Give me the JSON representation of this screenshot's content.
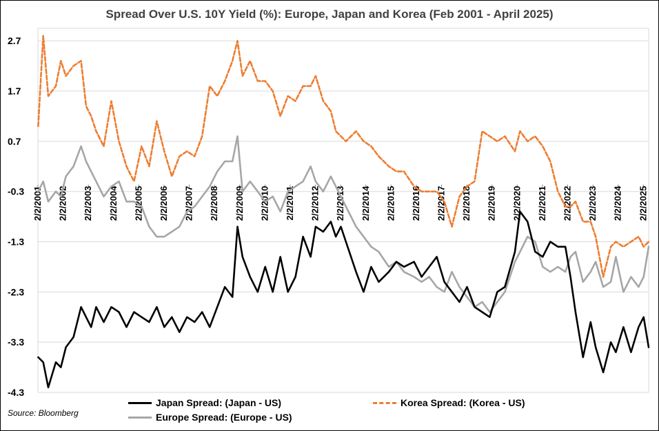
{
  "chart_data": {
    "type": "line",
    "title": "Spread Over U.S. 10Y Yield (%): Europe, Japan and Korea (Feb 2001 - April 2025)",
    "xlabel": "",
    "ylabel": "",
    "ylim": [
      -4.3,
      2.95
    ],
    "yticks": [
      2.7,
      1.7,
      0.7,
      -0.3,
      -1.3,
      -2.3,
      -3.3,
      -4.3
    ],
    "xlim": [
      2001.09,
      2025.3
    ],
    "xticks": [
      "2/2/2001",
      "2/2/2002",
      "2/2/2003",
      "2/2/2004",
      "2/2/2005",
      "2/2/2006",
      "2/2/2007",
      "2/2/2008",
      "2/2/2009",
      "2/2/2010",
      "2/2/2011",
      "2/2/2012",
      "2/2/2013",
      "2/2/2014",
      "2/2/2015",
      "2/2/2016",
      "2/2/2017",
      "2/2/2018",
      "2/2/2019",
      "2/2/2020",
      "2/2/2021",
      "2/2/2022",
      "2/2/2023",
      "2/2/2024",
      "2/2/2025"
    ],
    "xtick_positions": [
      2001.09,
      2002.09,
      2003.09,
      2004.09,
      2005.09,
      2006.09,
      2007.09,
      2008.09,
      2009.09,
      2010.09,
      2011.09,
      2012.09,
      2013.09,
      2014.09,
      2015.09,
      2016.09,
      2017.09,
      2018.09,
      2019.09,
      2020.09,
      2021.09,
      2022.09,
      2023.09,
      2024.09,
      2025.09
    ],
    "grid": true,
    "legend_position": "bottom",
    "series": [
      {
        "name": "Japan Spread: (Japan - US)",
        "color": "#000000",
        "style": "solid",
        "x": [
          2001.1,
          2001.3,
          2001.5,
          2001.8,
          2002.0,
          2002.2,
          2002.5,
          2002.8,
          2003.0,
          2003.2,
          2003.4,
          2003.7,
          2004.0,
          2004.3,
          2004.6,
          2004.9,
          2005.2,
          2005.5,
          2005.8,
          2006.1,
          2006.4,
          2006.7,
          2007.0,
          2007.3,
          2007.6,
          2007.9,
          2008.2,
          2008.5,
          2008.8,
          2009.0,
          2009.2,
          2009.5,
          2009.8,
          2010.1,
          2010.4,
          2010.7,
          2011.0,
          2011.3,
          2011.6,
          2011.9,
          2012.1,
          2012.4,
          2012.7,
          2012.9,
          2013.1,
          2013.3,
          2013.5,
          2013.7,
          2014.0,
          2014.3,
          2014.6,
          2015.0,
          2015.3,
          2015.6,
          2016.0,
          2016.3,
          2016.6,
          2016.9,
          2017.2,
          2017.5,
          2017.8,
          2018.1,
          2018.4,
          2018.7,
          2019.0,
          2019.3,
          2019.6,
          2020.0,
          2020.2,
          2020.5,
          2020.8,
          2021.1,
          2021.4,
          2021.7,
          2022.0,
          2022.2,
          2022.4,
          2022.7,
          2023.0,
          2023.2,
          2023.5,
          2023.8,
          2024.0,
          2024.3,
          2024.6,
          2024.9,
          2025.1,
          2025.3
        ],
        "values": [
          -3.6,
          -3.7,
          -4.2,
          -3.7,
          -3.8,
          -3.4,
          -3.2,
          -2.6,
          -2.8,
          -3.0,
          -2.6,
          -2.9,
          -2.6,
          -2.7,
          -3.0,
          -2.7,
          -2.8,
          -2.9,
          -2.6,
          -3.0,
          -2.8,
          -3.1,
          -2.8,
          -2.9,
          -2.7,
          -3.0,
          -2.6,
          -2.2,
          -2.4,
          -1.0,
          -1.6,
          -2.0,
          -2.3,
          -1.8,
          -2.3,
          -1.6,
          -2.3,
          -2.0,
          -1.2,
          -1.6,
          -1.0,
          -1.1,
          -0.9,
          -1.2,
          -1.0,
          -1.3,
          -1.6,
          -1.9,
          -2.3,
          -1.8,
          -2.1,
          -1.9,
          -1.7,
          -1.8,
          -1.7,
          -2.0,
          -1.8,
          -1.6,
          -2.1,
          -2.3,
          -2.5,
          -2.2,
          -2.6,
          -2.7,
          -2.8,
          -2.3,
          -2.2,
          -1.5,
          -0.7,
          -0.9,
          -1.5,
          -1.6,
          -1.3,
          -1.4,
          -1.4,
          -2.0,
          -2.7,
          -3.6,
          -2.9,
          -3.4,
          -3.9,
          -3.3,
          -3.5,
          -3.0,
          -3.5,
          -3.0,
          -2.8,
          -3.4
        ]
      },
      {
        "name": "Korea Spread: (Korea - US)",
        "color": "#ED7D31",
        "style": "dashed",
        "x": [
          2001.1,
          2001.3,
          2001.5,
          2001.8,
          2002.0,
          2002.2,
          2002.5,
          2002.8,
          2003.0,
          2003.2,
          2003.4,
          2003.7,
          2004.0,
          2004.3,
          2004.6,
          2004.9,
          2005.2,
          2005.5,
          2005.8,
          2006.1,
          2006.4,
          2006.7,
          2007.0,
          2007.3,
          2007.6,
          2007.9,
          2008.2,
          2008.5,
          2008.8,
          2009.0,
          2009.2,
          2009.5,
          2009.8,
          2010.1,
          2010.4,
          2010.7,
          2011.0,
          2011.3,
          2011.6,
          2011.9,
          2012.1,
          2012.4,
          2012.7,
          2012.9,
          2013.1,
          2013.3,
          2013.5,
          2013.7,
          2014.0,
          2014.3,
          2014.6,
          2015.0,
          2015.3,
          2015.6,
          2016.0,
          2016.3,
          2016.6,
          2016.9,
          2017.2,
          2017.5,
          2017.8,
          2018.1,
          2018.4,
          2018.7,
          2019.0,
          2019.3,
          2019.6,
          2020.0,
          2020.2,
          2020.5,
          2020.8,
          2021.1,
          2021.4,
          2021.7,
          2022.0,
          2022.2,
          2022.4,
          2022.7,
          2023.0,
          2023.2,
          2023.5,
          2023.8,
          2024.0,
          2024.3,
          2024.6,
          2024.9,
          2025.1,
          2025.3
        ],
        "values": [
          1.0,
          2.8,
          1.6,
          1.8,
          2.3,
          2.0,
          2.2,
          2.3,
          1.4,
          1.2,
          0.9,
          0.6,
          1.5,
          0.7,
          0.2,
          -0.1,
          0.6,
          0.2,
          1.1,
          0.5,
          0.0,
          0.4,
          0.5,
          0.4,
          0.8,
          1.8,
          1.6,
          1.9,
          2.3,
          2.7,
          2.0,
          2.3,
          1.9,
          1.9,
          1.7,
          1.2,
          1.6,
          1.5,
          1.8,
          1.8,
          2.0,
          1.5,
          1.3,
          0.9,
          0.8,
          0.7,
          0.8,
          0.9,
          0.7,
          0.6,
          0.4,
          0.2,
          0.1,
          0.1,
          -0.2,
          -0.3,
          -0.3,
          -0.3,
          -0.5,
          -1.0,
          -0.4,
          -0.2,
          -0.1,
          0.9,
          0.8,
          0.7,
          0.8,
          0.5,
          0.9,
          0.7,
          0.8,
          0.6,
          0.3,
          -0.3,
          -0.6,
          -0.6,
          -0.5,
          -0.9,
          -0.9,
          -1.2,
          -2.0,
          -1.4,
          -1.3,
          -1.4,
          -1.3,
          -1.2,
          -1.4,
          -1.3
        ]
      },
      {
        "name": "Europe Spread: (Europe - US)",
        "color": "#A6A6A6",
        "style": "solid",
        "x": [
          2001.1,
          2001.3,
          2001.5,
          2001.8,
          2002.0,
          2002.2,
          2002.5,
          2002.8,
          2003.0,
          2003.2,
          2003.4,
          2003.7,
          2004.0,
          2004.3,
          2004.6,
          2004.9,
          2005.2,
          2005.5,
          2005.8,
          2006.1,
          2006.4,
          2006.7,
          2007.0,
          2007.3,
          2007.6,
          2007.9,
          2008.2,
          2008.5,
          2008.8,
          2009.0,
          2009.2,
          2009.5,
          2009.8,
          2010.1,
          2010.4,
          2010.7,
          2011.0,
          2011.3,
          2011.6,
          2011.9,
          2012.1,
          2012.4,
          2012.7,
          2012.9,
          2013.1,
          2013.3,
          2013.5,
          2013.7,
          2014.0,
          2014.3,
          2014.6,
          2015.0,
          2015.3,
          2015.6,
          2016.0,
          2016.3,
          2016.6,
          2016.9,
          2017.2,
          2017.5,
          2017.8,
          2018.1,
          2018.4,
          2018.7,
          2019.0,
          2019.3,
          2019.6,
          2020.0,
          2020.2,
          2020.5,
          2020.8,
          2021.1,
          2021.4,
          2021.7,
          2022.0,
          2022.2,
          2022.4,
          2022.7,
          2023.0,
          2023.2,
          2023.5,
          2023.8,
          2024.0,
          2024.3,
          2024.6,
          2024.9,
          2025.1,
          2025.3
        ],
        "values": [
          -0.3,
          -0.1,
          -0.5,
          -0.3,
          -0.4,
          0.0,
          0.2,
          0.6,
          0.3,
          0.1,
          -0.1,
          -0.4,
          -0.2,
          -0.1,
          -0.5,
          -0.5,
          -0.6,
          -1.0,
          -1.2,
          -1.2,
          -1.1,
          -1.0,
          -0.7,
          -0.6,
          -0.4,
          -0.2,
          0.1,
          0.3,
          0.3,
          0.8,
          -0.3,
          -0.1,
          -0.3,
          -0.5,
          -0.4,
          -0.7,
          -0.3,
          -0.2,
          -0.1,
          0.2,
          -0.1,
          -0.3,
          0.0,
          -0.2,
          -0.4,
          -0.6,
          -0.8,
          -1.0,
          -1.2,
          -1.4,
          -1.5,
          -1.8,
          -1.7,
          -1.9,
          -2.0,
          -2.1,
          -2.0,
          -2.2,
          -2.3,
          -1.9,
          -2.2,
          -2.4,
          -2.6,
          -2.5,
          -2.7,
          -2.5,
          -2.3,
          -1.7,
          -1.5,
          -1.2,
          -1.3,
          -1.8,
          -1.9,
          -1.8,
          -1.9,
          -1.6,
          -1.5,
          -2.1,
          -1.9,
          -1.7,
          -2.2,
          -2.1,
          -1.6,
          -2.3,
          -2.0,
          -2.2,
          -2.0,
          -1.4
        ]
      }
    ]
  },
  "legend": {
    "japan": "Japan Spread: (Japan - US)",
    "korea": "Korea Spread: (Korea - US)",
    "europe": "Europe Spread: (Europe - US)"
  },
  "source": "Source: Bloomberg"
}
